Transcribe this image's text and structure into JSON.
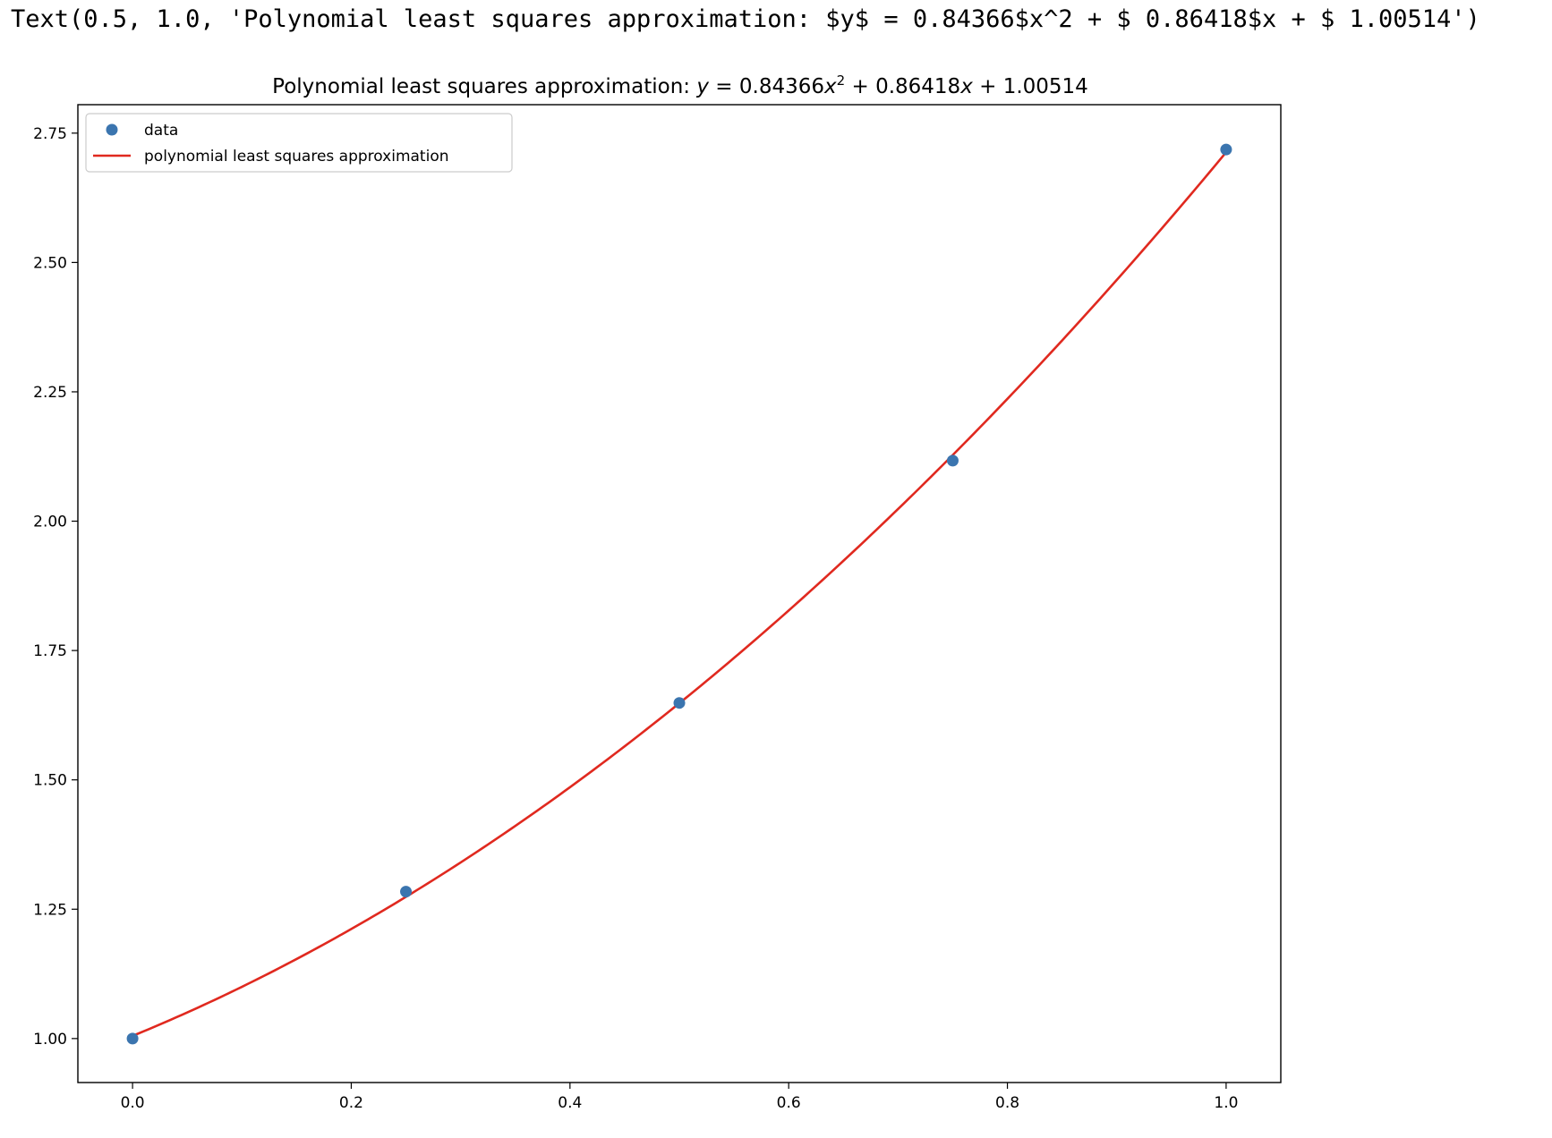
{
  "repr_text": "Text(0.5, 1.0, 'Polynomial least squares approximation: $y$ = 0.84366$x^2 + $ 0.86418$x + $ 1.00514')",
  "chart_data": {
    "type": "scatter",
    "title_parts": {
      "prefix": "Polynomial least squares approximation: ",
      "y": "y",
      "eq": " = 0.84366",
      "x1": "x",
      "exp": "2",
      "mid": " +  0.86418",
      "x2": "x",
      "tail": " +  1.00514"
    },
    "xlim": [
      -0.05,
      1.05
    ],
    "ylim": [
      0.915,
      2.805
    ],
    "xticks": [
      0.0,
      0.2,
      0.4,
      0.6,
      0.8,
      1.0
    ],
    "xtick_labels": [
      "0.0",
      "0.2",
      "0.4",
      "0.6",
      "0.8",
      "1.0"
    ],
    "yticks": [
      1.0,
      1.25,
      1.5,
      1.75,
      2.0,
      2.25,
      2.5,
      2.75
    ],
    "ytick_labels": [
      "1.00",
      "1.25",
      "1.50",
      "1.75",
      "2.00",
      "2.25",
      "2.50",
      "2.75"
    ],
    "grid": false,
    "legend_position": "upper-left",
    "series": [
      {
        "name": "data",
        "kind": "points",
        "color": "#3b75af",
        "x": [
          0.0,
          0.25,
          0.5,
          0.75,
          1.0
        ],
        "y": [
          1.0,
          1.284,
          1.6487,
          2.117,
          2.7183
        ]
      },
      {
        "name": "polynomial least squares approximation",
        "kind": "line",
        "color": "#e0291f",
        "coefficients": [
          0.84366,
          0.86418,
          1.00514
        ],
        "domain": [
          0.0,
          1.0
        ]
      }
    ]
  }
}
